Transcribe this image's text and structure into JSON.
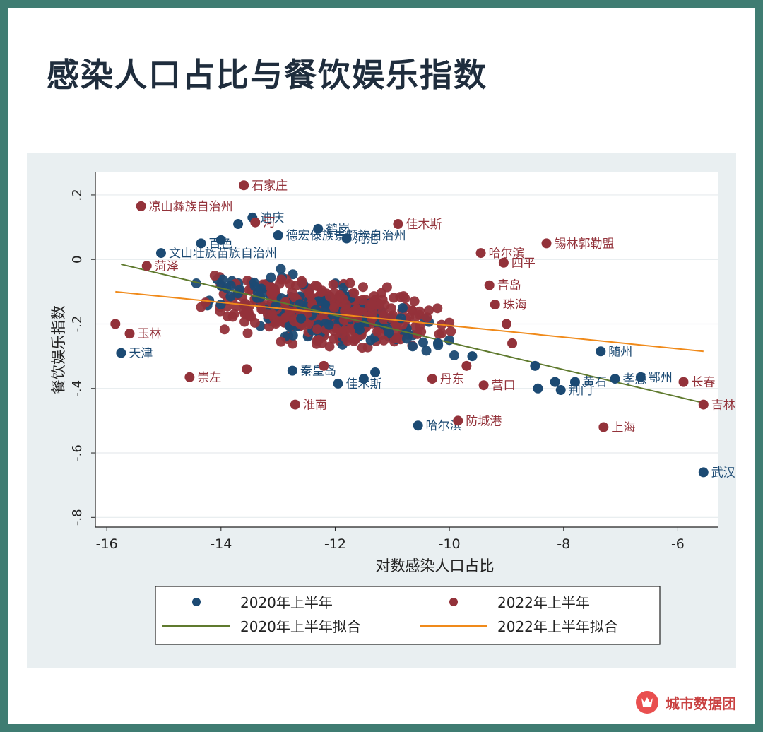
{
  "page": {
    "title": "感染人口占比与餐饮娱乐指数",
    "brand": "城市数据团"
  },
  "colors": {
    "s2020": "#1c4a73",
    "s2022": "#93323a",
    "fit2020": "#5f7a2e",
    "fit2022": "#f08a1a"
  },
  "chart_data": {
    "type": "scatter",
    "title": "",
    "xlabel": "对数感染人口占比",
    "ylabel": "餐饮娱乐指数",
    "xlim": [
      -16.2,
      -5.3
    ],
    "ylim": [
      -0.83,
      0.27
    ],
    "xticks": [
      -16,
      -14,
      -12,
      -10,
      -8,
      -6
    ],
    "xtick_labels": [
      "-16",
      "-14",
      "-12",
      "-10",
      "-8",
      "-6"
    ],
    "yticks": [
      0.2,
      0,
      -0.2,
      -0.4,
      -0.6,
      -0.8
    ],
    "ytick_labels": [
      ".2",
      "0",
      "-.2",
      "-.4",
      "-.6",
      "-.8"
    ],
    "legend": {
      "position": "bottom",
      "entries": [
        {
          "label": "2020年上半年",
          "kind": "marker",
          "color": "#1c4a73"
        },
        {
          "label": "2022年上半年",
          "kind": "marker",
          "color": "#93323a"
        },
        {
          "label": "2020年上半年拟合",
          "kind": "line",
          "color": "#5f7a2e"
        },
        {
          "label": "2022年上半年拟合",
          "kind": "line",
          "color": "#f08a1a"
        }
      ]
    },
    "fits": [
      {
        "name": "2020年上半年拟合",
        "x": [
          -15.75,
          -5.55
        ],
        "y": [
          -0.015,
          -0.445
        ]
      },
      {
        "name": "2022年上半年拟合",
        "x": [
          -15.85,
          -5.55
        ],
        "y": [
          -0.1,
          -0.285
        ]
      }
    ],
    "series": [
      {
        "name": "2020年上半年",
        "points": [
          {
            "x": -15.75,
            "y": -0.29,
            "label": "天津"
          },
          {
            "x": -15.05,
            "y": 0.02,
            "label": "文山壮族苗族自治州"
          },
          {
            "x": -12.3,
            "y": 0.095,
            "label": "鹤岗"
          },
          {
            "x": -13.0,
            "y": 0.075,
            "label": "德宏傣族景颇族自治州"
          },
          {
            "x": -11.95,
            "y": -0.385,
            "label": "佳木斯"
          },
          {
            "x": -12.75,
            "y": -0.345,
            "label": "秦皇岛"
          },
          {
            "x": -10.55,
            "y": -0.515,
            "label": "哈尔滨"
          },
          {
            "x": -7.35,
            "y": -0.285,
            "label": "随州"
          },
          {
            "x": -6.65,
            "y": -0.365,
            "label": "鄂州"
          },
          {
            "x": -7.1,
            "y": -0.37,
            "label": "孝感"
          },
          {
            "x": -7.8,
            "y": -0.38,
            "label": "黄石"
          },
          {
            "x": -8.05,
            "y": -0.405,
            "label": "荆门"
          },
          {
            "x": -5.55,
            "y": -0.66,
            "label": "武汉"
          },
          {
            "x": -13.45,
            "y": 0.13,
            "label": "迪庆"
          },
          {
            "x": -11.8,
            "y": 0.065,
            "label": "河池"
          },
          {
            "x": -14.35,
            "y": 0.05,
            "label": "百色"
          },
          {
            "x": -8.45,
            "y": -0.4,
            "label": ""
          },
          {
            "x": -8.15,
            "y": -0.38,
            "label": ""
          },
          {
            "x": -8.5,
            "y": -0.33,
            "label": ""
          },
          {
            "x": -9.6,
            "y": -0.3,
            "label": ""
          },
          {
            "x": -10.2,
            "y": -0.26,
            "label": ""
          },
          {
            "x": -13.7,
            "y": 0.11,
            "label": ""
          },
          {
            "x": -14.0,
            "y": 0.06,
            "label": ""
          },
          {
            "x": -11.3,
            "y": -0.35,
            "label": ""
          },
          {
            "x": -11.5,
            "y": -0.37,
            "label": ""
          }
        ]
      },
      {
        "name": "2022年上半年",
        "points": [
          {
            "x": -13.6,
            "y": 0.23,
            "label": "石家庄"
          },
          {
            "x": -15.4,
            "y": 0.165,
            "label": "凉山彝族自治州"
          },
          {
            "x": -10.9,
            "y": 0.11,
            "label": "佳木斯"
          },
          {
            "x": -8.3,
            "y": 0.05,
            "label": "锡林郭勒盟"
          },
          {
            "x": -9.45,
            "y": 0.02,
            "label": "哈尔滨"
          },
          {
            "x": -9.05,
            "y": -0.01,
            "label": "四平"
          },
          {
            "x": -15.3,
            "y": -0.02,
            "label": "菏泽"
          },
          {
            "x": -14.55,
            "y": -0.365,
            "label": "崇左"
          },
          {
            "x": -12.7,
            "y": -0.45,
            "label": "淮南"
          },
          {
            "x": -10.3,
            "y": -0.37,
            "label": "丹东"
          },
          {
            "x": -9.4,
            "y": -0.39,
            "label": "营口"
          },
          {
            "x": -9.85,
            "y": -0.5,
            "label": "防城港"
          },
          {
            "x": -7.3,
            "y": -0.52,
            "label": "上海"
          },
          {
            "x": -5.9,
            "y": -0.38,
            "label": "长春"
          },
          {
            "x": -5.55,
            "y": -0.45,
            "label": "吉林"
          },
          {
            "x": -15.6,
            "y": -0.23,
            "label": "玉林"
          },
          {
            "x": -13.4,
            "y": 0.115,
            "label": "河"
          },
          {
            "x": -15.85,
            "y": -0.2,
            "label": ""
          },
          {
            "x": -9.2,
            "y": -0.14,
            "label": "珠海"
          },
          {
            "x": -9.3,
            "y": -0.08,
            "label": "青岛"
          },
          {
            "x": -9.0,
            "y": -0.2,
            "label": ""
          },
          {
            "x": -8.9,
            "y": -0.26,
            "label": ""
          },
          {
            "x": -13.55,
            "y": -0.34,
            "label": ""
          },
          {
            "x": -12.2,
            "y": -0.33,
            "label": ""
          },
          {
            "x": -9.7,
            "y": -0.33,
            "label": ""
          }
        ]
      }
    ]
  }
}
